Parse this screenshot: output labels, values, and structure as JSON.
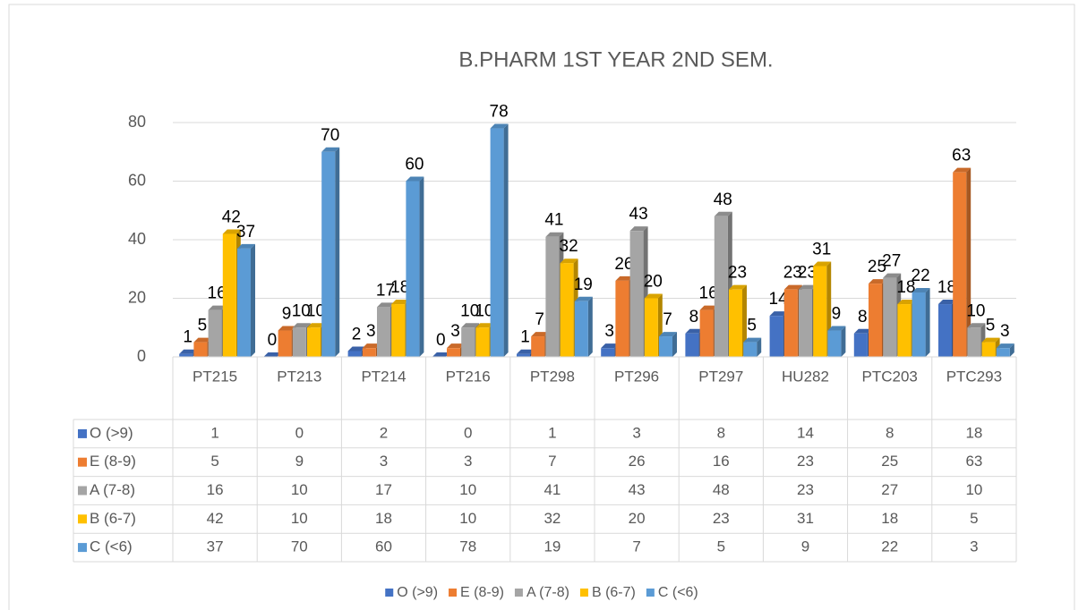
{
  "chart_data": {
    "type": "bar",
    "title": "B.PHARM 1ST YEAR 2ND SEM.",
    "categories": [
      "PT215",
      "PT213",
      "PT214",
      "PT216",
      "PT298",
      "PT296",
      "PT297",
      "HU282",
      "PTC203",
      "PTC293"
    ],
    "series": [
      {
        "name": "O (>9)",
        "color": "#4472c4",
        "values": [
          1,
          0,
          2,
          0,
          1,
          3,
          8,
          14,
          8,
          18
        ]
      },
      {
        "name": "E (8-9)",
        "color": "#ed7d31",
        "values": [
          5,
          9,
          3,
          3,
          7,
          26,
          16,
          23,
          25,
          63
        ]
      },
      {
        "name": "A (7-8)",
        "color": "#a5a5a5",
        "values": [
          16,
          10,
          17,
          10,
          41,
          43,
          48,
          23,
          27,
          10
        ]
      },
      {
        "name": "B (6-7)",
        "color": "#ffc000",
        "values": [
          42,
          10,
          18,
          10,
          32,
          20,
          23,
          31,
          18,
          5
        ]
      },
      {
        "name": "C (<6)",
        "color": "#5b9bd5",
        "values": [
          37,
          70,
          60,
          78,
          19,
          7,
          5,
          9,
          22,
          3
        ]
      }
    ],
    "ylim": [
      0,
      80
    ],
    "yticks": [
      0,
      20,
      40,
      60,
      80
    ],
    "grid": true,
    "legend": "bottom",
    "data_table": true
  }
}
